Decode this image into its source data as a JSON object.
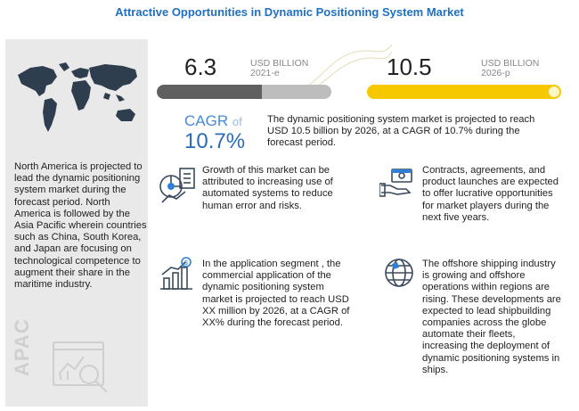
{
  "title": "Attractive Opportunities in Dynamic Positioning System Market",
  "left": {
    "text": "North America is projected to lead the dynamic positioning system market during the forecast period. North America is followed by the Asia Pacific wherein countries such as China, South Korea, and Japan are focusing on technological competence to augment their share in the maritime industry.",
    "region_label": "APAC"
  },
  "market": {
    "start_value": "6.3",
    "start_unit": "USD BILLION",
    "start_year": "2021-e",
    "end_value": "10.5",
    "end_unit": "USD BILLION",
    "end_year": "2026-p",
    "start_bar_fraction": 0.6,
    "colors": {
      "start_bar": "#606060",
      "end_bar": "#f6c800"
    }
  },
  "cagr": {
    "label": "CAGR",
    "of": "of",
    "value": "10.7%",
    "text": "The dynamic positioning system market is projected to reach USD 10.5 billion by 2026, at a CAGR of 10.7% during the forecast period."
  },
  "insights": [
    {
      "icon": "automation-chart-icon",
      "text": "Growth of this market can be attributed to increasing use of automated systems to reduce human error and risks."
    },
    {
      "icon": "handshake-money-icon",
      "text": "Contracts, agreements, and product launches are expected to offer lucrative opportunities for market players during the next five years."
    },
    {
      "icon": "growth-bar-chart-icon",
      "text": "In the application segment , the commercial application of the dynamic positioning system market is projected to reach USD XX million by 2026, at a CAGR of XX% during the forecast period."
    },
    {
      "icon": "globe-icon",
      "text": "The offshore shipping industry is growing and offshore operations within regions are rising. These developments are expected to lead shipbuilding companies across the globe automate their fleets, increasing the deployment of dynamic positioning systems in ships."
    }
  ]
}
